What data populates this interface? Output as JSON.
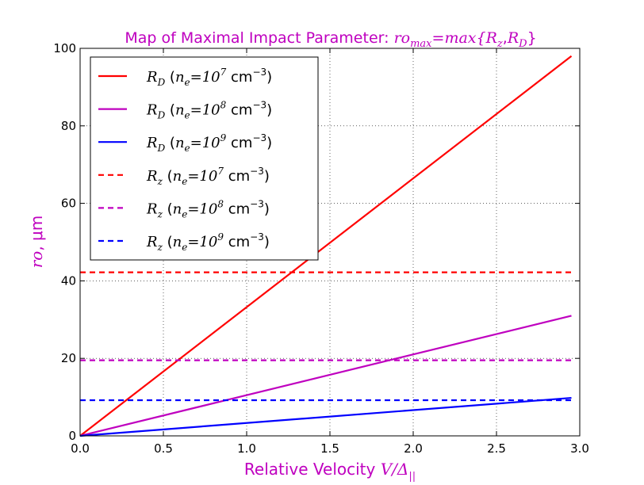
{
  "chart_data": {
    "type": "line",
    "title": {
      "prefix": "Map of Maximal Impact Parameter: ",
      "lhs_base": "ro",
      "lhs_sub": "max",
      "eq": "=",
      "fn": "max{",
      "a_base": "R",
      "a_sub": "z",
      "comma": ",",
      "b_base": "R",
      "b_sub": "D",
      "close": "}"
    },
    "xlabel": {
      "text": "Relative Velocity ",
      "math_base": "V/Δ",
      "math_sub": "||"
    },
    "ylabel": {
      "math": "ro",
      "text": ", μm"
    },
    "xlim": [
      0.0,
      3.0
    ],
    "ylim": [
      0,
      100
    ],
    "xticks": [
      "0.0",
      "0.5",
      "1.0",
      "1.5",
      "2.0",
      "2.5",
      "3.0"
    ],
    "yticks": [
      "0",
      "20",
      "40",
      "60",
      "80",
      "100"
    ],
    "grid": true,
    "legend_position": "top-left",
    "series": [
      {
        "name": "R_D (n_e=10^7 cm^-3)",
        "sym": "R",
        "sub": "D",
        "exp": "7",
        "color": "#ff0000",
        "style": "solid",
        "x": [
          0.0,
          2.95
        ],
        "y": [
          0,
          98
        ]
      },
      {
        "name": "R_D (n_e=10^8 cm^-3)",
        "sym": "R",
        "sub": "D",
        "exp": "8",
        "color": "#bf00bf",
        "style": "solid",
        "x": [
          0.0,
          2.95
        ],
        "y": [
          0,
          31
        ]
      },
      {
        "name": "R_D (n_e=10^9 cm^-3)",
        "sym": "R",
        "sub": "D",
        "exp": "9",
        "color": "#0000ff",
        "style": "solid",
        "x": [
          0.0,
          2.95
        ],
        "y": [
          0,
          9.8
        ]
      },
      {
        "name": "R_z (n_e=10^7 cm^-3)",
        "sym": "R",
        "sub": "z",
        "exp": "7",
        "color": "#ff0000",
        "style": "dashed",
        "x": [
          0.0,
          2.95
        ],
        "y": [
          42.2,
          42.2
        ]
      },
      {
        "name": "R_z (n_e=10^8 cm^-3)",
        "sym": "R",
        "sub": "z",
        "exp": "8",
        "color": "#bf00bf",
        "style": "dashed",
        "x": [
          0.0,
          2.95
        ],
        "y": [
          19.5,
          19.5
        ]
      },
      {
        "name": "R_z (n_e=10^9 cm^-3)",
        "sym": "R",
        "sub": "z",
        "exp": "9",
        "color": "#0000ff",
        "style": "dashed",
        "x": [
          0.0,
          2.95
        ],
        "y": [
          9.2,
          9.2
        ]
      }
    ],
    "legend_text": {
      "open": "(",
      "ne": "n",
      "ne_sub": "e",
      "eq": "=10",
      "unit": "cm",
      "unit_exp": "−3",
      "close": ")"
    }
  }
}
